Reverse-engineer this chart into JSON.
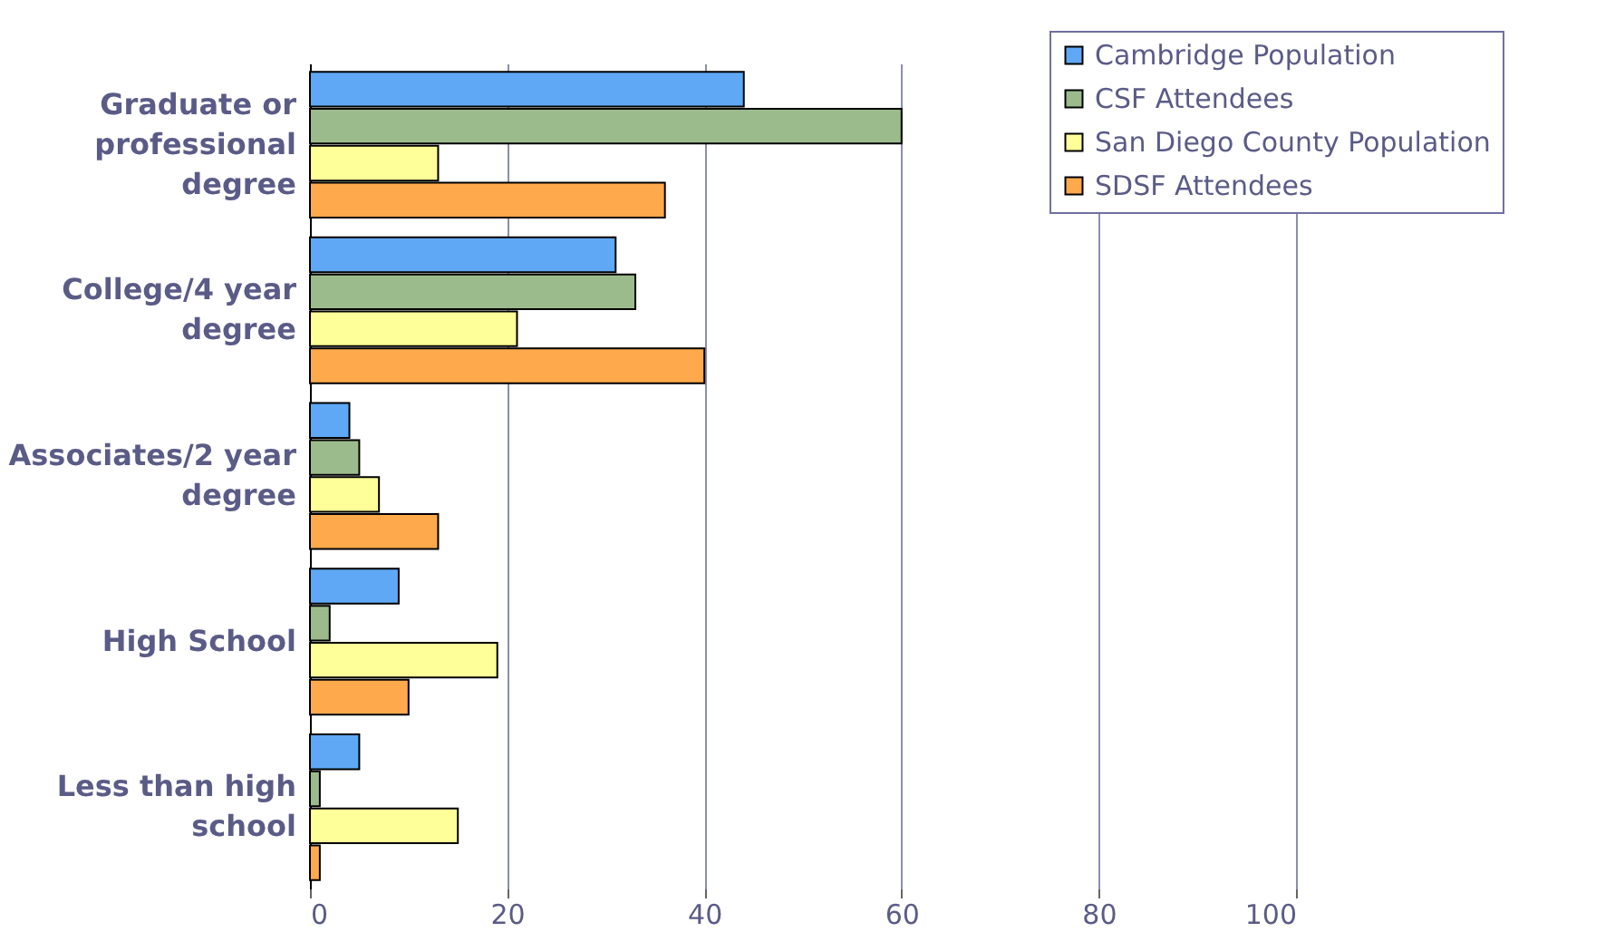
{
  "chart_data": {
    "type": "bar",
    "orientation": "horizontal",
    "categories": [
      "Graduate or professional degree",
      "College/4 year degree",
      "Associates/2 year degree",
      "High School",
      "Less than high school"
    ],
    "series": [
      {
        "name": "Cambridge Population",
        "color": "#5fa8f5",
        "values": [
          44,
          31,
          4,
          9,
          5
        ]
      },
      {
        "name": "CSF Attendees",
        "color": "#9cbb8c",
        "values": [
          60,
          33,
          5,
          2,
          1
        ]
      },
      {
        "name": "San Diego County Population",
        "color": "#ffff99",
        "values": [
          13,
          21,
          7,
          19,
          15
        ]
      },
      {
        "name": "SDSF Attendees",
        "color": "#ffa94d",
        "values": [
          36,
          40,
          13,
          10,
          1
        ]
      }
    ],
    "xlim": [
      0,
      100
    ],
    "xticks": [
      0,
      20,
      40,
      60,
      80,
      100
    ],
    "grid": "x",
    "legend": "top right"
  }
}
